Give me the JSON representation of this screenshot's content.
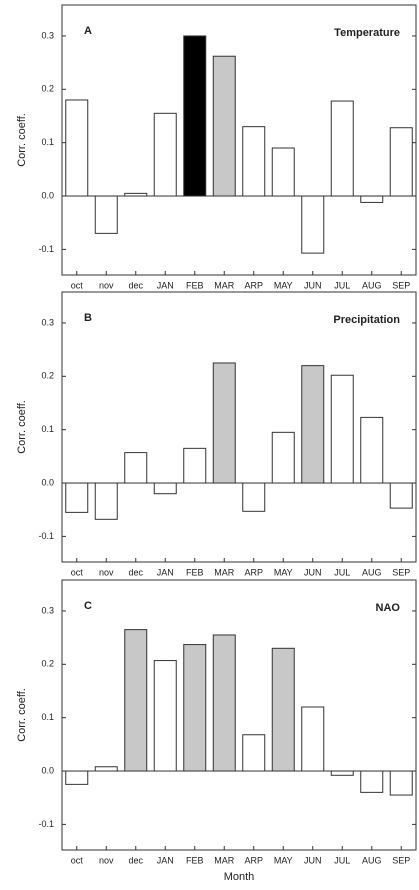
{
  "chart_data": [
    {
      "type": "bar",
      "panel": "A",
      "title": "Temperature",
      "ylabel": "Corr. coeff.",
      "categories": [
        "oct",
        "nov",
        "dec",
        "JAN",
        "FEB",
        "MAR",
        "ARP",
        "MAY",
        "JUN",
        "JUL",
        "AUG",
        "SEP"
      ],
      "values": [
        0.18,
        -0.07,
        0.005,
        0.155,
        0.3,
        0.262,
        0.13,
        0.09,
        -0.107,
        0.178,
        -0.012,
        0.128
      ],
      "colors": [
        "#ffffff",
        "#ffffff",
        "#ffffff",
        "#ffffff",
        "#000000",
        "#c8c8c8",
        "#ffffff",
        "#ffffff",
        "#ffffff",
        "#ffffff",
        "#ffffff",
        "#ffffff"
      ],
      "ylim": [
        -0.148,
        0.358
      ],
      "yticks": [
        -0.1,
        {
          "value": 0,
          "label": "0.0"
        },
        0.1,
        0.2,
        0.3
      ]
    },
    {
      "type": "bar",
      "panel": "B",
      "title": "Precipitation",
      "ylabel": "Corr. coeff.",
      "categories": [
        "oct",
        "nov",
        "dec",
        "JAN",
        "FEB",
        "MAR",
        "ARP",
        "MAY",
        "JUN",
        "JUL",
        "AUG",
        "SEP"
      ],
      "values": [
        -0.055,
        -0.068,
        0.057,
        -0.02,
        0.065,
        0.225,
        -0.053,
        0.095,
        0.22,
        0.202,
        0.123,
        -0.047
      ],
      "colors": [
        "#ffffff",
        "#ffffff",
        "#ffffff",
        "#ffffff",
        "#ffffff",
        "#c8c8c8",
        "#ffffff",
        "#ffffff",
        "#c8c8c8",
        "#ffffff",
        "#ffffff",
        "#ffffff"
      ],
      "ylim": [
        -0.148,
        0.358
      ],
      "yticks": [
        -0.1,
        {
          "value": 0,
          "label": "0.0"
        },
        0.1,
        0.2,
        0.3
      ]
    },
    {
      "type": "bar",
      "panel": "C",
      "title": "NAO",
      "ylabel": "Corr. coeff.",
      "xlabel": "Month",
      "categories": [
        "oct",
        "nov",
        "dec",
        "JAN",
        "FEB",
        "MAR",
        "ARP",
        "MAY",
        "JUN",
        "JUL",
        "AUG",
        "SEP"
      ],
      "values": [
        -0.025,
        0.008,
        0.265,
        0.207,
        0.237,
        0.255,
        0.068,
        0.23,
        0.12,
        -0.008,
        -0.04,
        -0.045
      ],
      "colors": [
        "#ffffff",
        "#ffffff",
        "#c8c8c8",
        "#ffffff",
        "#c8c8c8",
        "#c8c8c8",
        "#ffffff",
        "#c8c8c8",
        "#ffffff",
        "#ffffff",
        "#ffffff",
        "#ffffff"
      ],
      "ylim": [
        -0.148,
        0.358
      ],
      "yticks": [
        -0.1,
        {
          "value": 0,
          "label": "0.0"
        },
        0.1,
        0.2,
        0.3
      ]
    }
  ]
}
